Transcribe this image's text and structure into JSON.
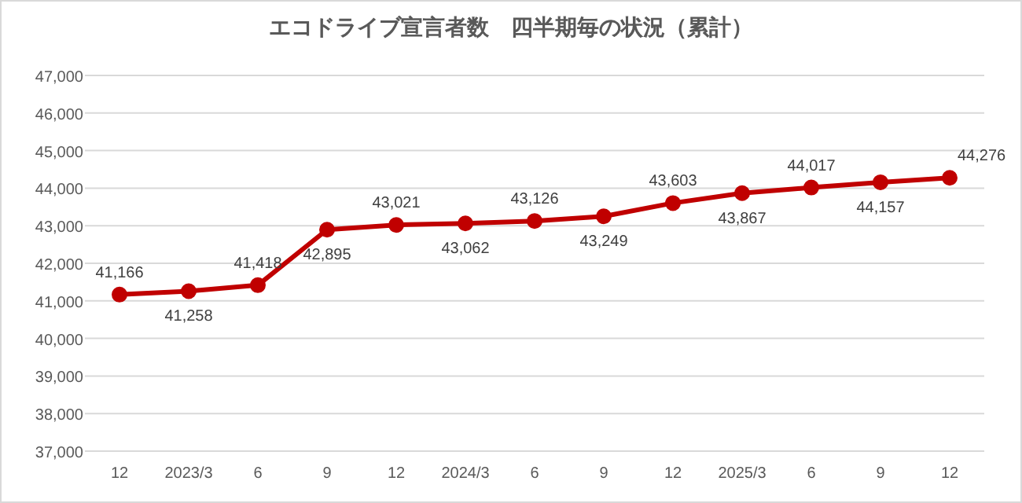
{
  "chart_data": {
    "type": "line",
    "title": "エコドライブ宣言者数　四半期毎の状況（累計）",
    "categories": [
      "12",
      "2023/3",
      "6",
      "9",
      "12",
      "2024/3",
      "6",
      "9",
      "12",
      "2025/3",
      "6",
      "9",
      "12"
    ],
    "series": [
      {
        "color": "#c00000",
        "values": [
          41166,
          41258,
          41418,
          42895,
          43021,
          43062,
          43126,
          43249,
          43603,
          43867,
          44017,
          44157,
          44276
        ]
      }
    ],
    "ylim": [
      37000,
      47000
    ],
    "yticks": [
      {
        "value": 37000,
        "label": "37,000"
      },
      {
        "value": 38000,
        "label": "38,000"
      },
      {
        "value": 39000,
        "label": "39,000"
      },
      {
        "value": 40000,
        "label": "40,000"
      },
      {
        "value": 41000,
        "label": "41,000"
      },
      {
        "value": 42000,
        "label": "42,000"
      },
      {
        "value": 43000,
        "label": "43,000"
      },
      {
        "value": 44000,
        "label": "44,000"
      },
      {
        "value": 45000,
        "label": "45,000"
      },
      {
        "value": 46000,
        "label": "46,000"
      },
      {
        "value": 47000,
        "label": "47,000"
      }
    ],
    "grid": "y",
    "marker": "circle",
    "line_style": "solid",
    "value_labels": [
      "41,166",
      "41,258",
      "41,418",
      "42,895",
      "43,021",
      "43,062",
      "43,126",
      "43,249",
      "43,603",
      "43,867",
      "44,017",
      "44,157",
      "44,276"
    ]
  }
}
